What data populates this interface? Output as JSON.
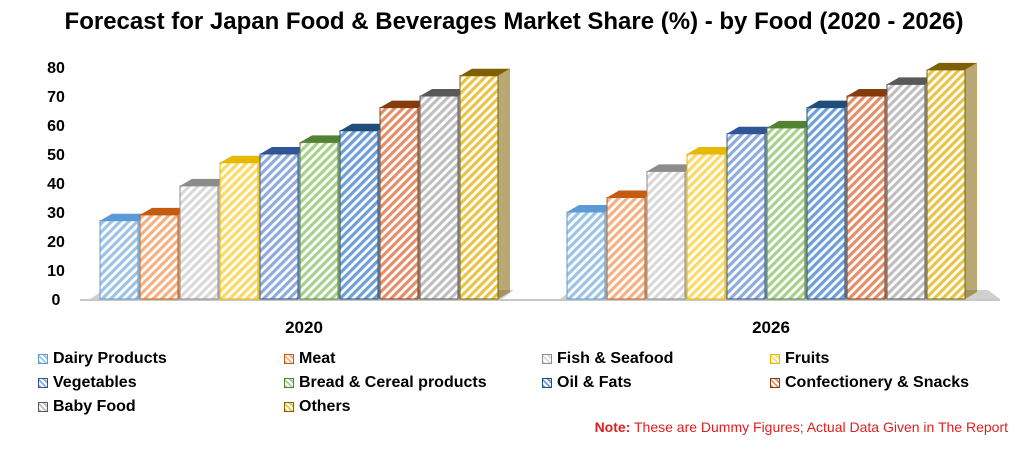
{
  "chart_data": {
    "type": "bar",
    "title": "Forecast for Japan Food & Beverages Market Share (%) - by Food (2020 - 2026)",
    "categories": [
      "2020",
      "2026"
    ],
    "ylim": [
      0,
      80
    ],
    "yticks": [
      "0",
      "10",
      "20",
      "30",
      "40",
      "50",
      "60",
      "70",
      "80"
    ],
    "grid": false,
    "legend_position": "bottom",
    "series": [
      {
        "name": "Dairy Products",
        "values": [
          27,
          30
        ],
        "color": "#9dc3e6",
        "edge": "#5b9bd5"
      },
      {
        "name": "Meat",
        "values": [
          29,
          35
        ],
        "color": "#f4b183",
        "edge": "#c55a11"
      },
      {
        "name": "Fish & Seafood",
        "values": [
          39,
          44
        ],
        "color": "#d9d9d9",
        "edge": "#8c8c8c"
      },
      {
        "name": "Fruits",
        "values": [
          47,
          50
        ],
        "color": "#ffd966",
        "edge": "#e6b800"
      },
      {
        "name": "Vegetables",
        "values": [
          50,
          57
        ],
        "color": "#8faadc",
        "edge": "#2f5597"
      },
      {
        "name": "Bread & Cereal products",
        "values": [
          54,
          59
        ],
        "color": "#a9d18e",
        "edge": "#548235"
      },
      {
        "name": "Oil & Fats",
        "values": [
          58,
          66
        ],
        "color": "#6f9fd8",
        "edge": "#1f4e79"
      },
      {
        "name": "Confectionery & Snacks",
        "values": [
          66,
          70
        ],
        "color": "#e2906a",
        "edge": "#843c0c"
      },
      {
        "name": "Baby Food",
        "values": [
          70,
          74
        ],
        "color": "#bfbfbf",
        "edge": "#595959"
      },
      {
        "name": "Others",
        "values": [
          77,
          79
        ],
        "color": "#e8c547",
        "edge": "#7f6000"
      }
    ]
  },
  "note": {
    "label": "Note:",
    "text": "These are Dummy Figures; Actual Data Given in The Report"
  }
}
